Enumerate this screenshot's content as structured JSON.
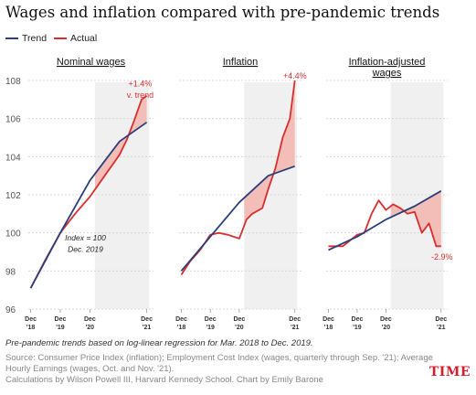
{
  "title": "Wages and inflation compared with pre-pandemic trends",
  "legend": [
    {
      "name": "Trend",
      "color": "#2a3f7a"
    },
    {
      "name": "Actual",
      "color": "#d72f2f"
    }
  ],
  "colors": {
    "trend": "#2a3f7a",
    "actual": "#d72f2f",
    "fill": "#f3b5ae",
    "panel": "#f0f0f0"
  },
  "chart_data": [
    {
      "type": "line",
      "title": "Nominal wages",
      "xlabels": [
        "Dec\n'18",
        "Dec\n'19",
        "Dec\n'20",
        "Dec\n'21"
      ],
      "ylim": [
        96,
        108
      ],
      "yticks": [
        "96",
        "98",
        "100",
        "102",
        "104",
        "106",
        "108"
      ],
      "shade": [
        2020.17,
        2022.0
      ],
      "annotations": [
        {
          "text": "+1.4%",
          "x": 2021.7,
          "y": 107.7,
          "color": "#d72f2f"
        },
        {
          "text": "v. trend",
          "x": 2021.7,
          "y": 107.1,
          "color": "#d72f2f"
        },
        {
          "text": "Index = 100",
          "x": 2019.85,
          "y": 99.6,
          "color": "#222",
          "italic": true
        },
        {
          "text": "Dec. 2019",
          "x": 2019.85,
          "y": 99.0,
          "color": "#222",
          "italic": true
        }
      ],
      "series": [
        {
          "name": "Trend",
          "x": [
            2018.0,
            2019.0,
            2020.0,
            2021.0,
            2021.92
          ],
          "y": [
            97.1,
            100.0,
            102.75,
            104.8,
            105.8
          ]
        },
        {
          "name": "Actual",
          "x": [
            2018.0,
            2018.5,
            2019.0,
            2019.5,
            2020.0,
            2020.5,
            2021.0,
            2021.25,
            2021.5,
            2021.75,
            2021.92
          ],
          "y": [
            97.1,
            98.6,
            100.0,
            101.0,
            101.9,
            103.0,
            104.1,
            104.9,
            105.9,
            107.0,
            107.2
          ]
        }
      ]
    },
    {
      "type": "line",
      "title": "Inflation",
      "xlabels": [
        "Dec\n'18",
        "Dec\n'19",
        "Dec\n'20",
        "Dec\n'21"
      ],
      "ylim": [
        96,
        108
      ],
      "shade": [
        2020.17,
        2022.0
      ],
      "annotations": [
        {
          "text": "+4.4%",
          "x": 2021.92,
          "y": 108.1,
          "color": "#d72f2f"
        }
      ],
      "series": [
        {
          "name": "Trend",
          "x": [
            2018.0,
            2019.0,
            2020.0,
            2021.0,
            2021.92
          ],
          "y": [
            98.0,
            99.8,
            101.6,
            103.0,
            103.5
          ]
        },
        {
          "name": "Actual",
          "x": [
            2018.0,
            2018.3,
            2018.65,
            2019.0,
            2019.3,
            2019.6,
            2020.0,
            2020.25,
            2020.45,
            2020.8,
            2021.0,
            2021.25,
            2021.5,
            2021.75,
            2021.92
          ],
          "y": [
            97.8,
            98.5,
            99.1,
            99.9,
            100.0,
            99.9,
            99.7,
            100.7,
            101.0,
            101.3,
            102.3,
            103.4,
            105.0,
            106.0,
            108.0
          ]
        }
      ]
    },
    {
      "type": "line",
      "title": "Inflation-adjusted wages",
      "xlabels": [
        "Dec\n'18",
        "Dec\n'19",
        "Dec\n'20",
        "Dec\n'21"
      ],
      "ylim": [
        96,
        108
      ],
      "shade": [
        2020.17,
        2022.0
      ],
      "annotations": [
        {
          "text": "-2.9%",
          "x": 2021.95,
          "y": 98.6,
          "color": "#d72f2f"
        }
      ],
      "series": [
        {
          "name": "Trend",
          "x": [
            2018.0,
            2019.0,
            2020.0,
            2021.0,
            2021.92
          ],
          "y": [
            99.1,
            99.8,
            100.7,
            101.4,
            102.2
          ]
        },
        {
          "name": "Actual",
          "x": [
            2018.0,
            2018.5,
            2019.0,
            2019.25,
            2019.5,
            2019.75,
            2020.0,
            2020.25,
            2020.5,
            2020.75,
            2021.0,
            2021.25,
            2021.5,
            2021.75,
            2021.92
          ],
          "y": [
            99.3,
            99.3,
            99.9,
            100.0,
            101.0,
            101.7,
            101.2,
            101.5,
            101.3,
            101.0,
            101.1,
            100.0,
            100.5,
            99.3,
            99.3
          ]
        }
      ]
    }
  ],
  "footnotes": {
    "method": "Pre-pandemic trends based on log-linear regression for Mar. 2018 to Dec. 2019.",
    "source1": "Source: Consumer Price Index (inflation); Employment Cost Index (wages, quarterly through Sep. '21); Average",
    "source2": "Hourly Earnings (wages, Oct. and Nov. '21).",
    "credit": "Calculations by Wilson Powell III, Harvard Kennedy School. Chart by Emily Barone"
  },
  "logo": "TIME"
}
